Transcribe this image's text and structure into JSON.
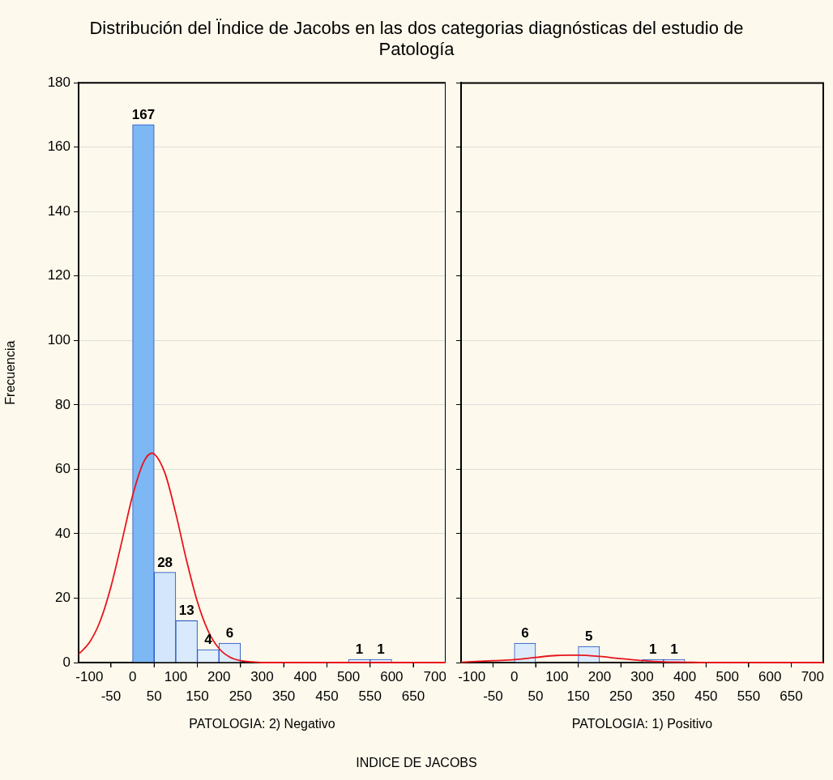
{
  "chart_data": [
    {
      "type": "histogram",
      "title": "Distribución del Ïndice de Jacobs en las dos categorias diagnósticas del estudio de Patología",
      "ylabel": "Frecuencia",
      "xlabel": "PATOLOGIA: 2) Negativo",
      "annotations": [
        "INDICE DE JACOBS"
      ],
      "bins": [
        0,
        50,
        100,
        150,
        200,
        250,
        300,
        350,
        400,
        450,
        500,
        550,
        600
      ],
      "values": [
        167,
        28,
        13,
        4,
        6,
        0,
        0,
        0,
        0,
        0,
        1,
        1
      ],
      "value_labels": [
        "167",
        "28",
        "13",
        "4",
        "6",
        null,
        null,
        null,
        null,
        null,
        "1",
        "1"
      ],
      "colors": [
        "#7db7f4",
        "#d3e6fb",
        "#d9eafc",
        "#e2effd",
        "#dcebfc",
        "#dcebfc",
        "#dcebfc",
        "#dcebfc",
        "#dcebfc",
        "#dcebfc",
        "#e6f1fd",
        "#e6f1fd"
      ],
      "series": [
        {
          "type": "line",
          "color": "#e8141c",
          "x": [
            -125,
            -100,
            -75,
            -50,
            -25,
            0,
            25,
            45,
            50,
            75,
            100,
            125,
            150,
            175,
            200,
            225,
            250,
            275,
            300,
            400,
            500,
            600,
            725
          ],
          "values": [
            2.6,
            6.2,
            12.9,
            23.6,
            37.5,
            51.8,
            62.1,
            65,
            64.8,
            58.8,
            46.3,
            31.7,
            18.9,
            9.8,
            4.4,
            1.7,
            0.6,
            0.2,
            0,
            0,
            0,
            0,
            0
          ]
        }
      ],
      "xlim": [
        -125,
        725
      ],
      "xticks": [
        -100,
        0,
        100,
        200,
        300,
        400,
        500,
        600,
        700
      ],
      "x2lim": [
        -125,
        725
      ],
      "x2ticks": [
        -50,
        50,
        150,
        250,
        350,
        450,
        550,
        650
      ],
      "ylim": [
        0,
        180
      ],
      "yticks": [
        0,
        20,
        40,
        60,
        80,
        100,
        120,
        140,
        160,
        180
      ],
      "grid": "y",
      "legend": false
    },
    {
      "type": "histogram",
      "xlabel": "PATOLOGIA: 1) Positivo",
      "bins": [
        0,
        50,
        100,
        150,
        200,
        250,
        300,
        350,
        400
      ],
      "values": [
        6,
        0,
        0,
        5,
        0,
        0,
        1,
        1
      ],
      "value_labels": [
        "6",
        null,
        null,
        "5",
        null,
        null,
        "1",
        "1"
      ],
      "colors": [
        "#dcebfc",
        "#dcebfc",
        "#dcebfc",
        "#dcebfc",
        "#dcebfc",
        "#dcebfc",
        "#e6f1fd",
        "#e6f1fd"
      ],
      "series": [
        {
          "type": "line",
          "color": "#e8141c",
          "x": [
            -125,
            -100,
            -50,
            0,
            50,
            100,
            135,
            150,
            200,
            250,
            300,
            350,
            400,
            450,
            550,
            725
          ],
          "values": [
            0.1,
            0.3,
            0.6,
            0.9,
            1.6,
            2.2,
            2.3,
            2.3,
            1.9,
            1.2,
            0.6,
            0.2,
            0.1,
            0,
            0,
            0
          ]
        }
      ],
      "xlim": [
        -125,
        725
      ],
      "xticks": [
        -100,
        0,
        100,
        200,
        300,
        400,
        500,
        600,
        700
      ],
      "x2lim": [
        -125,
        725
      ],
      "x2ticks": [
        -50,
        50,
        150,
        250,
        350,
        450,
        550,
        650
      ],
      "ylim": [
        0,
        180
      ],
      "yticks": [
        0,
        20,
        40,
        60,
        80,
        100,
        120,
        140,
        160,
        180
      ],
      "grid": "y",
      "legend": false,
      "tick_labels": "x"
    }
  ]
}
